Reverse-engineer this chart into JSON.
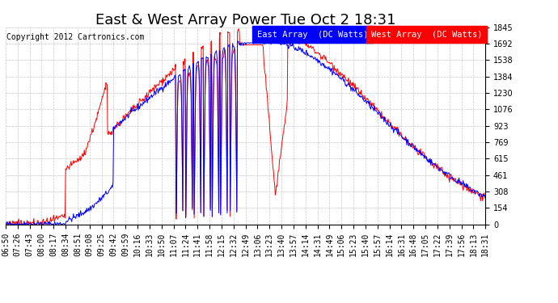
{
  "title": "East & West Array Power Tue Oct 2 18:31",
  "copyright": "Copyright 2012 Cartronics.com",
  "legend_east": "East Array  (DC Watts)",
  "legend_west": "West Array  (DC Watts)",
  "east_color": "#0000FF",
  "west_color": "#FF0000",
  "background_color": "#FFFFFF",
  "plot_bg_color": "#FFFFFF",
  "grid_color": "#C8C8C8",
  "ylim": [
    0.0,
    1845.4
  ],
  "yticks": [
    0.0,
    153.8,
    307.6,
    461.4,
    615.1,
    768.9,
    922.7,
    1076.5,
    1230.3,
    1384.1,
    1537.8,
    1691.6,
    1845.4
  ],
  "xtick_labels": [
    "06:50",
    "07:26",
    "07:43",
    "08:00",
    "08:17",
    "08:34",
    "08:51",
    "09:08",
    "09:25",
    "09:42",
    "09:59",
    "10:16",
    "10:33",
    "10:50",
    "11:07",
    "11:24",
    "11:41",
    "11:58",
    "12:15",
    "12:32",
    "12:49",
    "13:06",
    "13:23",
    "13:40",
    "13:57",
    "14:14",
    "14:31",
    "14:49",
    "15:06",
    "15:23",
    "15:40",
    "15:57",
    "16:14",
    "16:31",
    "16:48",
    "17:05",
    "17:22",
    "17:39",
    "17:56",
    "18:13",
    "18:31"
  ],
  "title_fontsize": 13,
  "axis_fontsize": 7,
  "copyright_fontsize": 7,
  "legend_fontsize": 7.5
}
